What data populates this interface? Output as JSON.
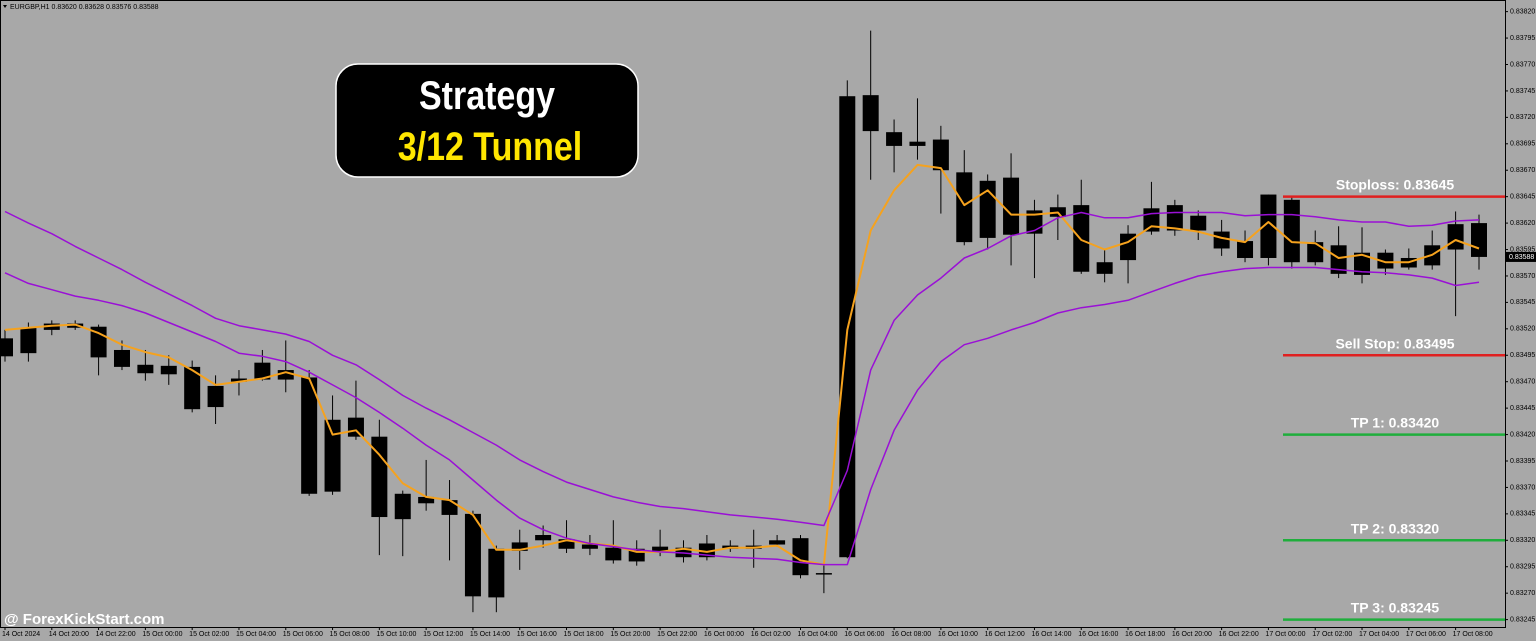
{
  "chart_data": {
    "type": "candlestick",
    "header": "EURGBP,H1  0.83620 0.83628 0.83576 0.83588",
    "title": "Strategy",
    "subtitle": "3/12 Tunnel",
    "watermark": "@ ForexKickStart.com",
    "background": "#a8a8a8",
    "candle_color": "#000000",
    "categories": [
      "14 Oct 2024",
      null,
      "14 Oct 20:00",
      null,
      "14 Oct 22:00",
      null,
      "15 Oct 00:00",
      null,
      "15 Oct 02:00",
      null,
      "15 Oct 04:00",
      null,
      "15 Oct 06:00",
      null,
      "15 Oct 08:00",
      null,
      "15 Oct 10:00",
      null,
      "15 Oct 12:00",
      null,
      "15 Oct 14:00",
      null,
      "15 Oct 16:00",
      null,
      "15 Oct 18:00",
      null,
      "15 Oct 20:00",
      null,
      "15 Oct 22:00",
      null,
      "16 Oct 00:00",
      null,
      "16 Oct 02:00",
      null,
      "16 Oct 04:00",
      null,
      "16 Oct 06:00",
      null,
      "16 Oct 08:00",
      null,
      "16 Oct 10:00",
      null,
      "16 Oct 12:00",
      null,
      "16 Oct 14:00",
      null,
      "16 Oct 16:00",
      null,
      "16 Oct 18:00",
      null,
      "16 Oct 20:00",
      null,
      "16 Oct 22:00",
      null,
      "17 Oct 00:00",
      null,
      "17 Oct 02:00",
      null,
      "17 Oct 04:00",
      null,
      "17 Oct 06:00",
      null,
      "17 Oct 08:00",
      null
    ],
    "open": [
      0.83494,
      0.83497,
      0.83519,
      0.83525,
      0.83522,
      0.835,
      0.83486,
      0.83485,
      0.83484,
      0.83446,
      0.8347,
      0.83472,
      0.83481,
      0.83474,
      0.83366,
      0.83436,
      0.83418,
      0.8334,
      0.83361,
      0.83358,
      0.83345,
      0.83266,
      0.8331,
      0.8332,
      0.83321,
      0.83312,
      0.83313,
      0.833,
      0.83309,
      0.83313,
      0.83304,
      0.83315,
      0.83312,
      0.83316,
      0.83322,
      0.83289,
      0.83304,
      0.83741,
      0.83706,
      0.83693,
      0.83699,
      0.83668,
      0.83606,
      0.83663,
      0.8361,
      0.83635,
      0.83637,
      0.83572,
      0.83585,
      0.83612,
      0.83637,
      0.83613,
      0.83612,
      0.83603,
      0.83587,
      0.83642,
      0.83583,
      0.83599,
      0.83571,
      0.83592,
      0.83578,
      0.8358,
      0.83595,
      0.8362
    ],
    "high": [
      0.83519,
      0.83526,
      0.83528,
      0.83528,
      0.83524,
      0.83509,
      0.835,
      0.83495,
      0.8349,
      0.83476,
      0.83481,
      0.835,
      0.83509,
      0.83481,
      0.83457,
      0.83471,
      0.83434,
      0.83367,
      0.83396,
      0.83377,
      0.83348,
      0.83315,
      0.8333,
      0.83334,
      0.83339,
      0.83325,
      0.83339,
      0.8332,
      0.8333,
      0.8332,
      0.83325,
      0.8332,
      0.8333,
      0.83325,
      0.83325,
      0.83299,
      0.83755,
      0.83802,
      0.83718,
      0.83738,
      0.83712,
      0.83689,
      0.83666,
      0.83686,
      0.83642,
      0.83647,
      0.83661,
      0.83595,
      0.83618,
      0.83659,
      0.83642,
      0.83632,
      0.83623,
      0.83613,
      0.83647,
      0.83645,
      0.83613,
      0.83617,
      0.83616,
      0.83595,
      0.83596,
      0.83613,
      0.83631,
      0.83628
    ],
    "low": [
      0.83489,
      0.83489,
      0.83514,
      0.83519,
      0.83476,
      0.83481,
      0.83471,
      0.83467,
      0.83441,
      0.8343,
      0.83457,
      0.83471,
      0.8346,
      0.83362,
      0.83363,
      0.83415,
      0.83306,
      0.83305,
      0.83348,
      0.83301,
      0.83252,
      0.83252,
      0.83292,
      0.83313,
      0.83308,
      0.83306,
      0.83298,
      0.83296,
      0.83305,
      0.83299,
      0.83301,
      0.83309,
      0.83294,
      0.83314,
      0.83284,
      0.8327,
      0.83303,
      0.83661,
      0.83668,
      0.8368,
      0.83629,
      0.83599,
      0.83595,
      0.8358,
      0.83568,
      0.83604,
      0.83572,
      0.83564,
      0.83563,
      0.83609,
      0.83608,
      0.83604,
      0.83589,
      0.83583,
      0.8358,
      0.83577,
      0.8358,
      0.83568,
      0.83563,
      0.83571,
      0.83576,
      0.83576,
      0.83532,
      0.83576
    ],
    "close": [
      0.83511,
      0.83521,
      0.83525,
      0.83521,
      0.83493,
      0.83484,
      0.83478,
      0.83477,
      0.83444,
      0.83466,
      0.83473,
      0.83488,
      0.83472,
      0.83364,
      0.83434,
      0.83418,
      0.83342,
      0.83364,
      0.83355,
      0.83344,
      0.83267,
      0.83312,
      0.83318,
      0.83325,
      0.83312,
      0.83316,
      0.83301,
      0.83312,
      0.83314,
      0.83304,
      0.83317,
      0.83312,
      0.83315,
      0.8332,
      0.83287,
      0.83289,
      0.8374,
      0.83707,
      0.83693,
      0.83697,
      0.8367,
      0.83602,
      0.8366,
      0.83609,
      0.83632,
      0.83626,
      0.83574,
      0.83583,
      0.8361,
      0.83634,
      0.83613,
      0.83627,
      0.83596,
      0.83587,
      0.83647,
      0.83583,
      0.83602,
      0.83572,
      0.83592,
      0.83577,
      0.83587,
      0.83599,
      0.83619,
      0.83588
    ],
    "lines": [
      {
        "color": "#f5a21e",
        "values": [
          0.83519,
          0.83521,
          0.83523,
          0.83524,
          0.83516,
          0.83505,
          0.83498,
          0.83493,
          0.83481,
          0.83467,
          0.8347,
          0.83473,
          0.83479,
          0.83473,
          0.8342,
          0.83424,
          0.83401,
          0.83374,
          0.83361,
          0.83358,
          0.83344,
          0.83311,
          0.83311,
          0.83315,
          0.8332,
          0.83317,
          0.83315,
          0.83309,
          0.83309,
          0.83312,
          0.83309,
          0.83313,
          0.83313,
          0.83315,
          0.83301,
          0.83297,
          0.83519,
          0.83613,
          0.83651,
          0.83675,
          0.83672,
          0.83637,
          0.83651,
          0.83628,
          0.83628,
          0.8363,
          0.83604,
          0.83595,
          0.83602,
          0.83617,
          0.83615,
          0.83612,
          0.83606,
          0.83602,
          0.83621,
          0.83602,
          0.83601,
          0.83587,
          0.8359,
          0.83583,
          0.83583,
          0.8359,
          0.83604,
          0.83596
        ]
      },
      {
        "color": "#9a10d6",
        "values": [
          0.83631,
          0.8362,
          0.8361,
          0.83598,
          0.83587,
          0.83576,
          0.83564,
          0.83553,
          0.83542,
          0.8353,
          0.83523,
          0.83519,
          0.83515,
          0.83508,
          0.83495,
          0.83486,
          0.83472,
          0.83457,
          0.83445,
          0.83434,
          0.83422,
          0.8341,
          0.83396,
          0.83385,
          0.83375,
          0.83368,
          0.83361,
          0.83356,
          0.83352,
          0.8335,
          0.83347,
          0.83344,
          0.83342,
          0.8334,
          0.83337,
          0.83334,
          0.83386,
          0.83481,
          0.83528,
          0.83552,
          0.83568,
          0.83587,
          0.83596,
          0.83608,
          0.83613,
          0.83625,
          0.8363,
          0.83625,
          0.83625,
          0.83629,
          0.8363,
          0.8363,
          0.8363,
          0.83627,
          0.83628,
          0.83628,
          0.83626,
          0.83623,
          0.83621,
          0.83621,
          0.83617,
          0.83618,
          0.83622,
          0.83623
        ]
      },
      {
        "color": "#9a10d6",
        "values": [
          0.83573,
          0.83563,
          0.83557,
          0.83551,
          0.83547,
          0.83542,
          0.83535,
          0.83526,
          0.83517,
          0.83508,
          0.83497,
          0.83494,
          0.83489,
          0.83479,
          0.83467,
          0.83455,
          0.83441,
          0.83426,
          0.8341,
          0.83396,
          0.83377,
          0.83358,
          0.83341,
          0.8333,
          0.83322,
          0.83317,
          0.83314,
          0.83311,
          0.83309,
          0.83308,
          0.83306,
          0.83304,
          0.83303,
          0.83302,
          0.83299,
          0.83297,
          0.83297,
          0.83368,
          0.83424,
          0.83462,
          0.83489,
          0.83505,
          0.83511,
          0.83519,
          0.83526,
          0.83535,
          0.8354,
          0.83543,
          0.83547,
          0.83555,
          0.83563,
          0.8357,
          0.83574,
          0.83577,
          0.83578,
          0.83578,
          0.83578,
          0.83576,
          0.83574,
          0.83573,
          0.83571,
          0.83568,
          0.83561,
          0.83564
        ]
      }
    ],
    "levels": [
      {
        "label": "Stoploss: 0.83645",
        "value": 0.83645,
        "color": "#e02020"
      },
      {
        "label": "Sell Stop: 0.83495",
        "value": 0.83495,
        "color": "#e02020"
      },
      {
        "label": "TP 1: 0.83420",
        "value": 0.8342,
        "color": "#1fae3c"
      },
      {
        "label": "TP 2: 0.83320",
        "value": 0.8332,
        "color": "#1fae3c"
      },
      {
        "label": "TP 3: 0.83245",
        "value": 0.83245,
        "color": "#1fae3c"
      }
    ],
    "last_price": 0.83588,
    "ylim": [
      0.83238,
      0.83831
    ],
    "yticks": [
      0.83245,
      {
        "value": 0.8327,
        "label": "0.83270"
      },
      0.83295,
      {
        "value": 0.8332,
        "label": "0.83320"
      },
      0.83345,
      {
        "value": 0.8337,
        "label": "0.83370"
      },
      0.83395,
      {
        "value": 0.8342,
        "label": "0.83420"
      },
      0.83445,
      {
        "value": 0.8347,
        "label": "0.83470"
      },
      0.83495,
      {
        "value": 0.8352,
        "label": "0.83520"
      },
      0.83545,
      {
        "value": 0.8357,
        "label": "0.83570"
      },
      0.83595,
      {
        "value": 0.8362,
        "label": "0.83620"
      },
      0.83645,
      {
        "value": 0.8367,
        "label": "0.83670"
      },
      0.83695,
      {
        "value": 0.8372,
        "label": "0.83720"
      },
      0.83745,
      {
        "value": 0.8377,
        "label": "0.83770"
      },
      0.83795,
      {
        "value": 0.8382,
        "label": "0.83820"
      }
    ]
  }
}
